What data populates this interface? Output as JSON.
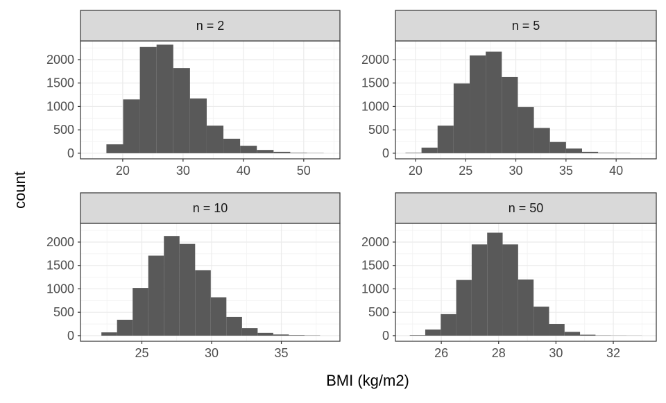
{
  "chart_data": {
    "type": "histogram-facets",
    "xlabel": "BMI (kg/m2)",
    "ylabel": "count",
    "bar_color": "#595959",
    "strip_fill": "#d9d9d9",
    "panels": [
      {
        "strip": "n = 2",
        "xlim": [
          13,
          56
        ],
        "xticks": [
          "20",
          "30",
          "40",
          "50"
        ],
        "ylim": [
          -120,
          2400
        ],
        "yticks": [
          "0",
          "500",
          "1000",
          "1500",
          "2000"
        ],
        "bin_width": 2.77,
        "bin_starts": [
          17.3,
          20.07,
          22.84,
          25.61,
          28.38,
          31.15,
          33.92,
          36.69,
          39.46,
          42.23,
          45.0,
          47.77,
          50.54
        ],
        "counts": [
          190,
          1150,
          2270,
          2320,
          1820,
          1170,
          590,
          310,
          160,
          70,
          30,
          10,
          5
        ]
      },
      {
        "strip": "n = 5",
        "xlim": [
          18,
          44
        ],
        "xticks": [
          "20",
          "25",
          "30",
          "35",
          "40"
        ],
        "ylim": [
          -120,
          2400
        ],
        "yticks": [
          "0",
          "500",
          "1000",
          "1500",
          "2000"
        ],
        "bin_width": 1.6,
        "bin_starts": [
          19.0,
          20.6,
          22.2,
          23.8,
          25.4,
          27.0,
          28.6,
          30.2,
          31.8,
          33.4,
          35.0,
          36.6,
          38.2,
          39.8
        ],
        "counts": [
          10,
          120,
          590,
          1490,
          2090,
          2170,
          1630,
          990,
          540,
          240,
          100,
          30,
          10,
          5
        ]
      },
      {
        "strip": "n = 10",
        "xlim": [
          20.6,
          39.2
        ],
        "xticks": [
          "25",
          "30",
          "35"
        ],
        "ylim": [
          -120,
          2400
        ],
        "yticks": [
          "0",
          "500",
          "1000",
          "1500",
          "2000"
        ],
        "bin_width": 1.12,
        "bin_starts": [
          22.1,
          23.22,
          24.34,
          25.46,
          26.58,
          27.7,
          28.82,
          29.94,
          31.06,
          32.18,
          33.3,
          34.42,
          35.54,
          36.66
        ],
        "counts": [
          70,
          340,
          1020,
          1710,
          2130,
          1960,
          1400,
          820,
          400,
          160,
          60,
          25,
          10,
          5
        ]
      },
      {
        "strip": "n = 50",
        "xlim": [
          24.4,
          33.5
        ],
        "xticks": [
          "26",
          "28",
          "30",
          "32"
        ],
        "ylim": [
          -120,
          2400
        ],
        "yticks": [
          "0",
          "500",
          "1000",
          "1500",
          "2000"
        ],
        "bin_width": 0.54,
        "bin_starts": [
          24.9,
          25.44,
          25.98,
          26.52,
          27.06,
          27.6,
          28.14,
          28.68,
          29.22,
          29.76,
          30.3,
          30.84,
          31.38,
          31.92,
          32.46
        ],
        "counts": [
          10,
          130,
          460,
          1190,
          1950,
          2200,
          1950,
          1200,
          620,
          250,
          80,
          20,
          5,
          3,
          2
        ]
      }
    ]
  }
}
